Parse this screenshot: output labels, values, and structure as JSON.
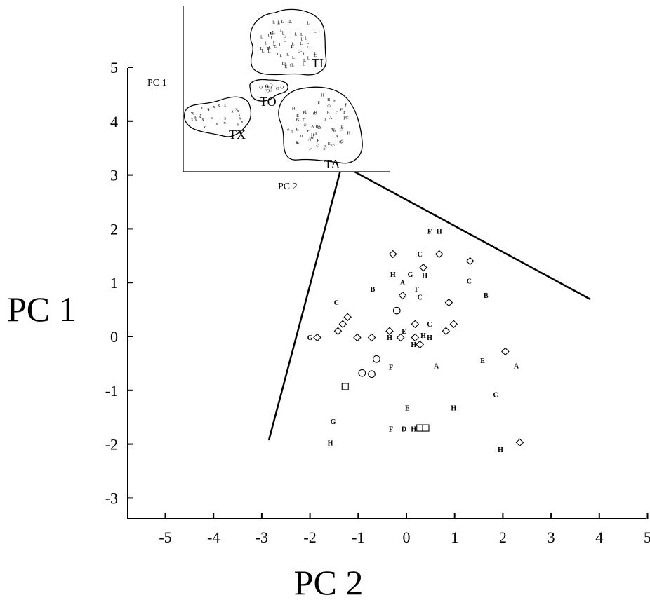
{
  "chart_data": {
    "type": "scatter",
    "title": "",
    "xlabel": "PC 2",
    "ylabel": "PC 1",
    "xlim": [
      -5.8,
      5.2
    ],
    "ylim": [
      -3.4,
      5.2
    ],
    "xticks": [
      -5,
      -4,
      -3,
      -2,
      -1,
      0,
      1,
      2,
      3,
      4,
      5
    ],
    "yticks": [
      -3,
      -2,
      -1,
      0,
      1,
      2,
      3,
      4,
      5
    ],
    "grid": false,
    "points": [
      {
        "x": 0.48,
        "y": 1.95,
        "m": "F"
      },
      {
        "x": 0.68,
        "y": 1.95,
        "m": "H"
      },
      {
        "x": -0.28,
        "y": 1.53,
        "m": "diamond"
      },
      {
        "x": 0.28,
        "y": 1.53,
        "m": "C"
      },
      {
        "x": 0.68,
        "y": 1.53,
        "m": "diamond"
      },
      {
        "x": 1.32,
        "y": 1.4,
        "m": "diamond"
      },
      {
        "x": 0.35,
        "y": 1.28,
        "m": "diamond"
      },
      {
        "x": -0.28,
        "y": 1.15,
        "m": "H"
      },
      {
        "x": 0.08,
        "y": 1.15,
        "m": "G"
      },
      {
        "x": 0.38,
        "y": 1.13,
        "m": "H"
      },
      {
        "x": -0.08,
        "y": 1.0,
        "m": "A"
      },
      {
        "x": 1.3,
        "y": 1.03,
        "m": "C"
      },
      {
        "x": -0.7,
        "y": 0.88,
        "m": "B"
      },
      {
        "x": 0.22,
        "y": 0.88,
        "m": "F"
      },
      {
        "x": -0.08,
        "y": 0.76,
        "m": "diamond"
      },
      {
        "x": 0.28,
        "y": 0.73,
        "m": "C"
      },
      {
        "x": 1.65,
        "y": 0.76,
        "m": "B"
      },
      {
        "x": -1.45,
        "y": 0.63,
        "m": "C"
      },
      {
        "x": 0.88,
        "y": 0.63,
        "m": "diamond"
      },
      {
        "x": -0.2,
        "y": 0.48,
        "m": "circle"
      },
      {
        "x": -1.22,
        "y": 0.36,
        "m": "diamond"
      },
      {
        "x": -1.32,
        "y": 0.23,
        "m": "diamond"
      },
      {
        "x": 0.18,
        "y": 0.23,
        "m": "diamond"
      },
      {
        "x": 0.48,
        "y": 0.23,
        "m": "C"
      },
      {
        "x": 0.98,
        "y": 0.23,
        "m": "diamond"
      },
      {
        "x": -1.42,
        "y": 0.1,
        "m": "diamond"
      },
      {
        "x": -0.35,
        "y": 0.1,
        "m": "diamond"
      },
      {
        "x": -0.05,
        "y": 0.1,
        "m": "E"
      },
      {
        "x": 0.82,
        "y": 0.1,
        "m": "diamond"
      },
      {
        "x": -1.02,
        "y": -0.02,
        "m": "diamond"
      },
      {
        "x": -0.72,
        "y": -0.02,
        "m": "diamond"
      },
      {
        "x": -0.35,
        "y": -0.02,
        "m": "H"
      },
      {
        "x": -0.12,
        "y": -0.02,
        "m": "diamond"
      },
      {
        "x": 0.18,
        "y": -0.02,
        "m": "diamond"
      },
      {
        "x": 0.35,
        "y": 0.02,
        "m": "H"
      },
      {
        "x": 0.48,
        "y": -0.02,
        "m": "H"
      },
      {
        "x": 0.15,
        "y": -0.15,
        "m": "H"
      },
      {
        "x": 0.28,
        "y": -0.15,
        "m": "diamond"
      },
      {
        "x": -2.0,
        "y": -0.02,
        "m": "G"
      },
      {
        "x": -1.85,
        "y": -0.02,
        "m": "diamond"
      },
      {
        "x": 2.05,
        "y": -0.28,
        "m": "diamond"
      },
      {
        "x": -0.62,
        "y": -0.42,
        "m": "circle"
      },
      {
        "x": 1.58,
        "y": -0.45,
        "m": "E"
      },
      {
        "x": 2.28,
        "y": -0.55,
        "m": "A"
      },
      {
        "x": -0.32,
        "y": -0.57,
        "m": "F"
      },
      {
        "x": 0.62,
        "y": -0.55,
        "m": "A"
      },
      {
        "x": -0.92,
        "y": -0.68,
        "m": "circle"
      },
      {
        "x": -0.72,
        "y": -0.7,
        "m": "circle"
      },
      {
        "x": 1.85,
        "y": -1.08,
        "m": "C"
      },
      {
        "x": -1.27,
        "y": -0.93,
        "m": "square"
      },
      {
        "x": 0.02,
        "y": -1.33,
        "m": "E"
      },
      {
        "x": 0.98,
        "y": -1.33,
        "m": "H"
      },
      {
        "x": -1.52,
        "y": -1.58,
        "m": "G"
      },
      {
        "x": -0.32,
        "y": -1.72,
        "m": "F"
      },
      {
        "x": -0.05,
        "y": -1.72,
        "m": "D"
      },
      {
        "x": 0.15,
        "y": -1.72,
        "m": "H"
      },
      {
        "x": 0.28,
        "y": -1.7,
        "m": "square"
      },
      {
        "x": 0.4,
        "y": -1.7,
        "m": "square"
      },
      {
        "x": 2.35,
        "y": -1.97,
        "m": "diamond"
      },
      {
        "x": -1.58,
        "y": -1.98,
        "m": "H"
      },
      {
        "x": 1.95,
        "y": -2.1,
        "m": "H"
      }
    ],
    "inset": {
      "xlabel": "PC 2",
      "ylabel": "PC 1",
      "groups": [
        "TL",
        "TO",
        "TX",
        "TA"
      ],
      "group_markers": {
        "TL": "L",
        "TX": "x",
        "TO": "O"
      }
    }
  }
}
